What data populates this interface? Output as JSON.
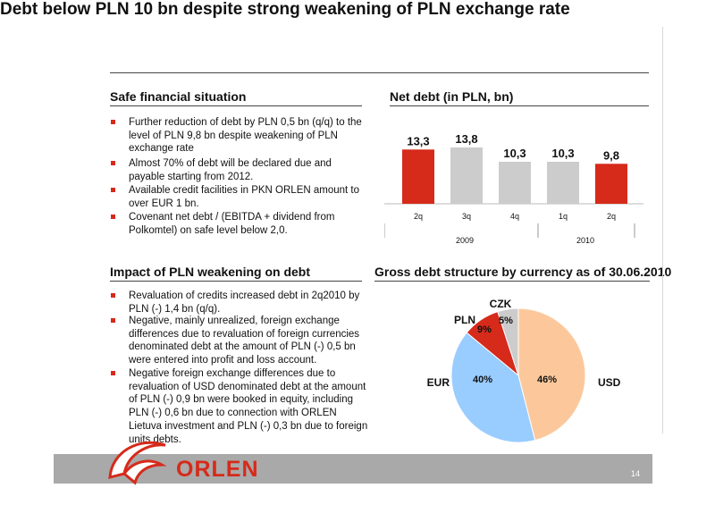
{
  "title": "Debt below PLN 10 bn despite strong weakening of PLN exchange rate",
  "sections": {
    "safe": {
      "heading": "Safe financial situation",
      "bullets": [
        "Further reduction of debt by PLN 0,5 bn (q/q) to the level of PLN 9,8 bn despite weakening of PLN exchange rate",
        "Almost 70% of debt will be declared due and payable starting from 2012.",
        "Available credit facilities in PKN ORLEN amount to over EUR 1 bn.",
        "Covenant net debt / (EBITDA + dividend from Polkomtel) on safe level below 2,0."
      ]
    },
    "impact": {
      "heading": "Impact of PLN weakening on debt",
      "bullets": [
        "Revaluation of credits increased debt in 2q2010 by PLN (-) 1,4 bn (q/q).",
        "Negative, mainly unrealized, foreign exchange differences due to revaluation of foreign currencies denominated debt at the amount of PLN (-) 0,5 bn were entered into profit and loss account.",
        "Negative foreign exchange differences due to revaluation of USD denominated debt at the amount of PLN (-) 0,9 bn were booked in equity, including PLN (-) 0,6 bn due to connection with ORLEN Lietuva investment and PLN (-) 0,3 bn due to foreign units debts."
      ]
    }
  },
  "chart_data": [
    {
      "type": "bar",
      "title": "Net debt (in PLN, bn)",
      "categories": [
        "2q",
        "3q",
        "4q",
        "1q",
        "2q"
      ],
      "groups": [
        {
          "label": "2009",
          "count": 3
        },
        {
          "label": "2010",
          "count": 2
        }
      ],
      "values": [
        13.3,
        13.8,
        10.3,
        10.3,
        9.8
      ],
      "value_labels": [
        "13,3",
        "13,8",
        "10,3",
        "10,3",
        "9,8"
      ],
      "highlight": [
        true,
        false,
        false,
        false,
        true
      ],
      "colors": {
        "highlight": "#d62a1a",
        "normal": "#cccccc"
      },
      "ylim": [
        0,
        15
      ]
    },
    {
      "type": "pie",
      "title": "Gross debt structure by currency as of 30.06.2010",
      "slices": [
        {
          "label": "USD",
          "value": 46,
          "value_label": "46%",
          "color": "#fcc89b"
        },
        {
          "label": "EUR",
          "value": 40,
          "value_label": "40%",
          "color": "#99ccff"
        },
        {
          "label": "PLN",
          "value": 9,
          "value_label": "9%",
          "color": "#d62a1a"
        },
        {
          "label": "CZK",
          "value": 5,
          "value_label": "5%",
          "color": "#cccccc"
        }
      ]
    }
  ],
  "footer": {
    "brand": "ORLEN",
    "page": "14",
    "color": "#a9a9a9"
  }
}
